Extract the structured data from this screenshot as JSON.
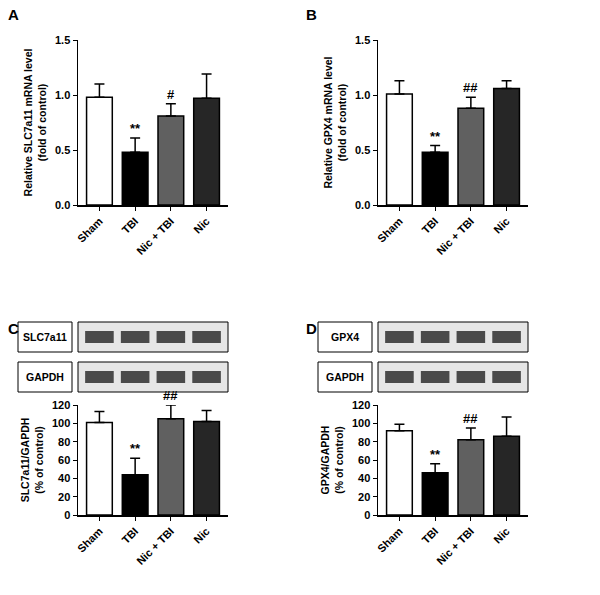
{
  "chart_data": [
    {
      "panel": "A",
      "type": "bar",
      "ylabel": "Relative SLC7a11 mRNA level\n(fold of control)",
      "categories": [
        "Sham",
        "TBI",
        "Nic + TBI",
        "Nic"
      ],
      "values": [
        0.98,
        0.48,
        0.81,
        0.97
      ],
      "errors": [
        0.12,
        0.13,
        0.11,
        0.22
      ],
      "colors": [
        "#ffffff",
        "#000000",
        "#606060",
        "#262626"
      ],
      "significance": [
        null,
        "**",
        "#",
        null
      ],
      "ylim": [
        0,
        1.5
      ],
      "yticks": [
        {
          "value": 0,
          "label": "0.0"
        },
        0.5,
        {
          "value": 1,
          "label": "1.0"
        },
        1.5
      ]
    },
    {
      "panel": "B",
      "type": "bar",
      "ylabel": "Relative GPX4 mRNA level\n(fold of control)",
      "categories": [
        "Sham",
        "TBI",
        "Nic + TBI",
        "Nic"
      ],
      "values": [
        1.01,
        0.48,
        0.88,
        1.06
      ],
      "errors": [
        0.12,
        0.06,
        0.1,
        0.07
      ],
      "colors": [
        "#ffffff",
        "#000000",
        "#606060",
        "#262626"
      ],
      "significance": [
        null,
        "**",
        "##",
        null
      ],
      "ylim": [
        0,
        1.5
      ],
      "yticks": [
        {
          "value": 0,
          "label": "0.0"
        },
        0.5,
        {
          "value": 1,
          "label": "1.0"
        },
        1.5
      ]
    },
    {
      "panel": "C",
      "type": "bar",
      "ylabel": "SLC7a11/GAPDH\n(% of control)",
      "blot_labels": [
        "SLC7a11",
        "GAPDH"
      ],
      "categories": [
        "Sham",
        "TBI",
        "Nic + TBI",
        "Nic"
      ],
      "values": [
        101,
        44,
        105,
        102
      ],
      "errors": [
        12,
        18,
        15,
        12
      ],
      "colors": [
        "#ffffff",
        "#000000",
        "#606060",
        "#262626"
      ],
      "significance": [
        null,
        "**",
        "##",
        null
      ],
      "ylim": [
        0,
        120
      ],
      "yticks": [
        0,
        20,
        40,
        60,
        80,
        100,
        120
      ]
    },
    {
      "panel": "D",
      "type": "bar",
      "ylabel": "GPX4/GAPDH\n(% of control)",
      "blot_labels": [
        "GPX4",
        "GAPDH"
      ],
      "categories": [
        "Sham",
        "TBI",
        "Nic + TBI",
        "Nic"
      ],
      "values": [
        92,
        46,
        82,
        86
      ],
      "errors": [
        7,
        10,
        13,
        21
      ],
      "colors": [
        "#ffffff",
        "#000000",
        "#606060",
        "#262626"
      ],
      "significance": [
        null,
        "**",
        "##",
        null
      ],
      "ylim": [
        0,
        120
      ],
      "yticks": [
        0,
        20,
        40,
        60,
        80,
        100,
        120
      ]
    }
  ]
}
